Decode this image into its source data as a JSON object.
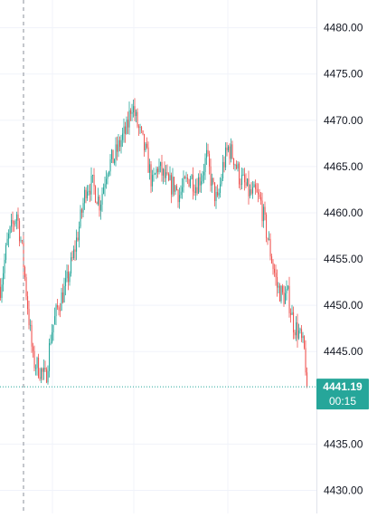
{
  "chart_data": {
    "type": "candlestick",
    "ylim": [
      4427.5,
      4483.0
    ],
    "y_ticks": [
      4480,
      4475,
      4470,
      4465,
      4460,
      4455,
      4450,
      4445,
      4435,
      4430
    ],
    "y_tick_labels": [
      "4480.00",
      "4475.00",
      "4470.00",
      "4465.00",
      "4460.00",
      "4455.00",
      "4450.00",
      "4445.00",
      "4435.00",
      "4430.00"
    ],
    "grid": true,
    "last_price": {
      "value": 4441.19,
      "label": "4441.19",
      "countdown": "00:15"
    },
    "path_points": [
      [
        0,
        4452
      ],
      [
        8,
        4457
      ],
      [
        18,
        4460
      ],
      [
        24,
        4456
      ],
      [
        30,
        4450
      ],
      [
        36,
        4444
      ],
      [
        44,
        4443
      ],
      [
        50,
        4442
      ],
      [
        56,
        4447
      ],
      [
        64,
        4450
      ],
      [
        72,
        4452
      ],
      [
        80,
        4455
      ],
      [
        88,
        4459
      ],
      [
        95,
        4463
      ],
      [
        102,
        4463
      ],
      [
        110,
        4461
      ],
      [
        118,
        4465
      ],
      [
        126,
        4466
      ],
      [
        134,
        4468
      ],
      [
        140,
        4469
      ],
      [
        145,
        4472
      ],
      [
        150,
        4470
      ],
      [
        156,
        4468
      ],
      [
        162,
        4466
      ],
      [
        168,
        4463
      ],
      [
        174,
        4465
      ],
      [
        180,
        4464
      ],
      [
        186,
        4463
      ],
      [
        192,
        4463
      ],
      [
        198,
        4462
      ],
      [
        204,
        4463
      ],
      [
        210,
        4464
      ],
      [
        216,
        4463
      ],
      [
        222,
        4464
      ],
      [
        228,
        4466
      ],
      [
        234,
        4463
      ],
      [
        240,
        4461
      ],
      [
        246,
        4465
      ],
      [
        252,
        4467
      ],
      [
        258,
        4466
      ],
      [
        264,
        4464
      ],
      [
        270,
        4463
      ],
      [
        276,
        4462
      ],
      [
        282,
        4462
      ],
      [
        288,
        4461
      ],
      [
        294,
        4458
      ],
      [
        300,
        4455
      ],
      [
        306,
        4452
      ],
      [
        312,
        4451
      ],
      [
        318,
        4451
      ],
      [
        324,
        4448
      ],
      [
        330,
        4447
      ],
      [
        336,
        4445
      ],
      [
        340,
        4441
      ]
    ],
    "colors": {
      "up": "#26a69a",
      "down": "#ef5350",
      "grid": "#f0f3fa",
      "axis_text": "#131722",
      "price_line": "#26a69a",
      "crosshair": "#8a8f99"
    }
  }
}
